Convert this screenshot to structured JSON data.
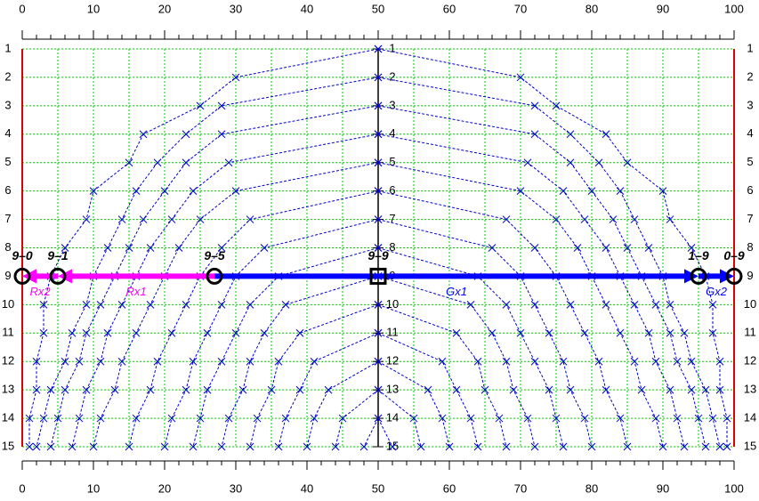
{
  "chart_data": {
    "type": "line",
    "rows": [
      1,
      2,
      3,
      4,
      5,
      6,
      7,
      8,
      9,
      10,
      11,
      12,
      13,
      14,
      15
    ],
    "xlim": [
      0,
      100
    ],
    "xticks": [
      0,
      10,
      20,
      30,
      40,
      50,
      60,
      70,
      80,
      90,
      100
    ],
    "x_minor_step": 2,
    "xgrid": [
      0,
      5,
      10,
      15,
      20,
      25,
      30,
      35,
      40,
      45,
      50,
      55,
      60,
      65,
      70,
      75,
      80,
      85,
      90,
      95,
      100
    ],
    "grid_color": "#00cc00",
    "curve_color": "#0000cc",
    "edge_color": "#dd0000",
    "curves": [
      {
        "left": [
          50,
          30,
          25,
          17,
          15,
          10,
          9,
          6,
          4,
          3,
          3,
          2,
          2,
          1,
          1
        ],
        "right": [
          50,
          70,
          75,
          82,
          85,
          90,
          91,
          94,
          96,
          97,
          97,
          98,
          98,
          99,
          99
        ]
      },
      {
        "left": [
          null,
          50,
          28,
          23,
          19,
          16,
          14,
          12,
          10,
          9,
          7,
          6,
          4,
          3,
          2
        ],
        "right": [
          null,
          50,
          72,
          77,
          81,
          84,
          86,
          88,
          90,
          91,
          93,
          94,
          96,
          97,
          98
        ]
      },
      {
        "left": [
          null,
          null,
          50,
          28,
          23,
          20,
          17,
          15,
          13,
          11,
          9,
          8,
          6,
          5,
          4
        ],
        "right": [
          null,
          null,
          50,
          72,
          77,
          80,
          83,
          85,
          87,
          89,
          91,
          92,
          94,
          95,
          96
        ]
      },
      {
        "left": [
          null,
          null,
          null,
          50,
          29,
          24,
          21,
          18,
          16,
          14,
          12,
          11,
          9,
          8,
          7
        ],
        "right": [
          null,
          null,
          null,
          50,
          71,
          76,
          79,
          82,
          84,
          86,
          88,
          89,
          91,
          92,
          93
        ]
      },
      {
        "left": [
          null,
          null,
          null,
          null,
          50,
          30,
          25,
          22,
          20,
          18,
          16,
          14,
          13,
          11,
          10
        ],
        "right": [
          null,
          null,
          null,
          null,
          50,
          70,
          75,
          78,
          80,
          82,
          84,
          86,
          87,
          89,
          90
        ]
      },
      {
        "left": [
          null,
          null,
          null,
          null,
          null,
          50,
          32,
          28,
          25,
          23,
          21,
          19,
          18,
          16,
          15
        ],
        "right": [
          null,
          null,
          null,
          null,
          null,
          50,
          68,
          72,
          75,
          77,
          79,
          81,
          82,
          84,
          85
        ]
      },
      {
        "left": [
          null,
          null,
          null,
          null,
          null,
          null,
          50,
          34,
          30,
          28,
          26,
          24,
          23,
          21,
          20
        ],
        "right": [
          null,
          null,
          null,
          null,
          null,
          null,
          50,
          66,
          70,
          72,
          74,
          76,
          77,
          79,
          80
        ]
      },
      {
        "left": [
          null,
          null,
          null,
          null,
          null,
          null,
          null,
          50,
          36,
          32,
          30,
          28,
          26,
          25,
          24
        ],
        "right": [
          null,
          null,
          null,
          null,
          null,
          null,
          null,
          50,
          64,
          68,
          70,
          72,
          74,
          75,
          76
        ]
      },
      {
        "left": [
          null,
          null,
          null,
          null,
          null,
          null,
          null,
          null,
          50,
          37,
          34,
          32,
          31,
          29,
          28
        ],
        "right": [
          null,
          null,
          null,
          null,
          null,
          null,
          null,
          null,
          50,
          63,
          66,
          68,
          69,
          71,
          72
        ]
      },
      {
        "left": [
          null,
          null,
          null,
          null,
          null,
          null,
          null,
          null,
          null,
          50,
          39,
          36,
          35,
          33,
          32
        ],
        "right": [
          null,
          null,
          null,
          null,
          null,
          null,
          null,
          null,
          null,
          50,
          61,
          64,
          65,
          67,
          68
        ]
      },
      {
        "left": [
          null,
          null,
          null,
          null,
          null,
          null,
          null,
          null,
          null,
          null,
          50,
          41,
          39,
          37,
          36
        ],
        "right": [
          null,
          null,
          null,
          null,
          null,
          null,
          null,
          null,
          null,
          null,
          50,
          59,
          61,
          63,
          64
        ]
      },
      {
        "left": [
          null,
          null,
          null,
          null,
          null,
          null,
          null,
          null,
          null,
          null,
          null,
          50,
          43,
          41,
          40
        ],
        "right": [
          null,
          null,
          null,
          null,
          null,
          null,
          null,
          null,
          null,
          null,
          null,
          50,
          57,
          59,
          60
        ]
      },
      {
        "left": [
          null,
          null,
          null,
          null,
          null,
          null,
          null,
          null,
          null,
          null,
          null,
          null,
          50,
          45,
          44
        ],
        "right": [
          null,
          null,
          null,
          null,
          null,
          null,
          null,
          null,
          null,
          null,
          null,
          null,
          50,
          55,
          56
        ]
      },
      {
        "left": [
          null,
          null,
          null,
          null,
          null,
          null,
          null,
          null,
          null,
          null,
          null,
          null,
          null,
          50,
          48
        ],
        "right": [
          null,
          null,
          null,
          null,
          null,
          null,
          null,
          null,
          null,
          null,
          null,
          null,
          null,
          50,
          52
        ]
      }
    ],
    "row": 9,
    "arrows": [
      {
        "label": "Rx2",
        "from": 5,
        "to": 0,
        "color": "#ff00ff"
      },
      {
        "label": "Rx1",
        "from": 27,
        "to": 5,
        "color": "#ff00ff"
      },
      {
        "label": "Gx1",
        "from": 27,
        "to": 95,
        "color": "#0000ff"
      },
      {
        "label": "Gx2",
        "from": 95,
        "to": 100,
        "color": "#0000ff"
      }
    ],
    "points": [
      {
        "label": "9–0",
        "x": 0,
        "shape": "circle"
      },
      {
        "label": "9–1",
        "x": 5,
        "shape": "circle"
      },
      {
        "label": "9–5",
        "x": 27,
        "shape": "circle"
      },
      {
        "label": "9–9",
        "x": 50,
        "shape": "square"
      },
      {
        "label": "1–9",
        "x": 95,
        "shape": "circle"
      },
      {
        "label": "0–9",
        "x": 100,
        "shape": "circle"
      }
    ]
  }
}
